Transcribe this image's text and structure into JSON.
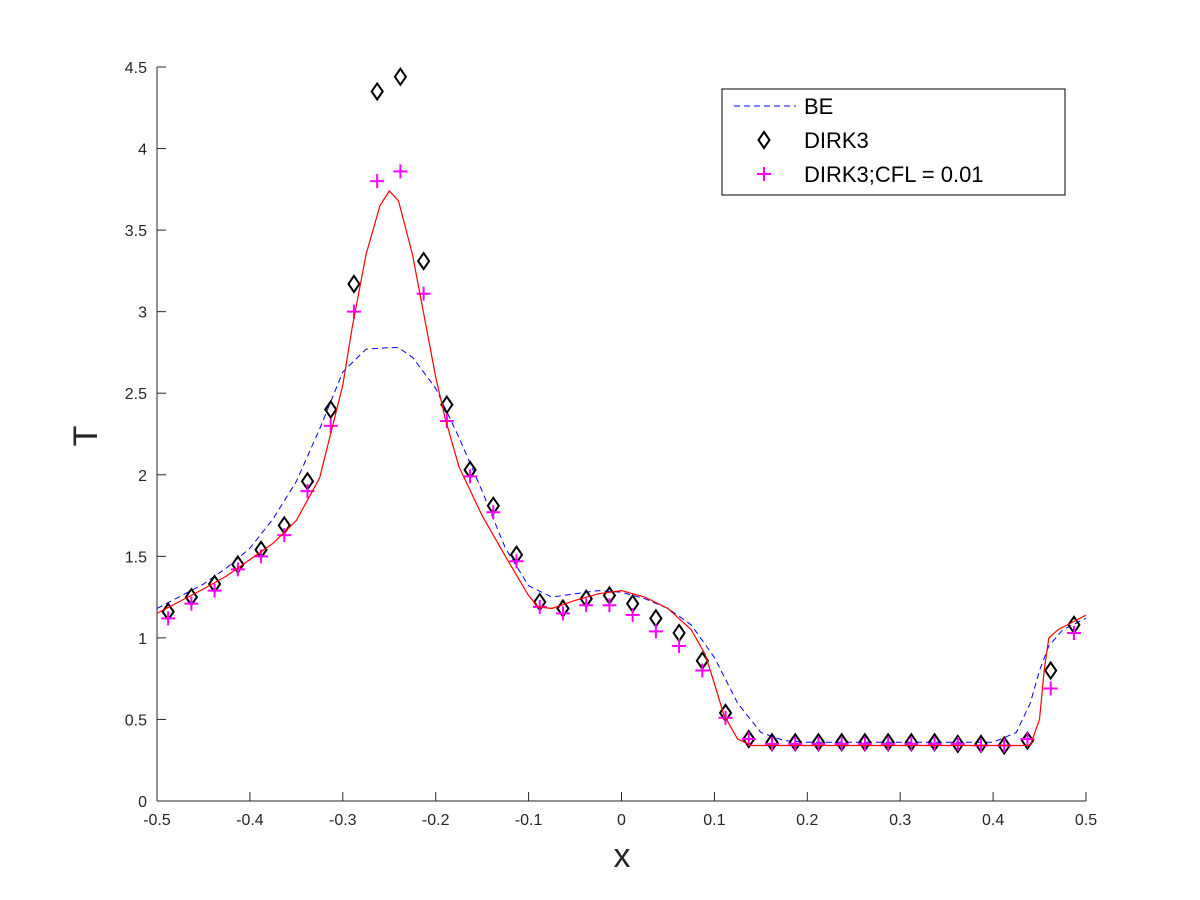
{
  "chart_data": {
    "type": "line",
    "xlabel": "x",
    "ylabel": "T",
    "xlim": [
      -0.5,
      0.5
    ],
    "ylim": [
      0,
      4.5
    ],
    "xticks": [
      "-0.5",
      "-0.4",
      "-0.3",
      "-0.2",
      "-0.1",
      "0",
      "0.1",
      "0.2",
      "0.3",
      "0.4",
      "0.5"
    ],
    "yticks": [
      "0",
      "0.5",
      "1",
      "1.5",
      "2",
      "2.5",
      "3",
      "3.5",
      "4",
      "4.5"
    ],
    "grid": false,
    "legend_position": "top-right",
    "series": [
      {
        "name": "BE",
        "style": "dashed-line",
        "color": "#0000ff",
        "x": [
          -0.5,
          -0.45,
          -0.425,
          -0.4,
          -0.375,
          -0.35,
          -0.325,
          -0.3,
          -0.275,
          -0.25,
          -0.24,
          -0.225,
          -0.2,
          -0.175,
          -0.15,
          -0.125,
          -0.1,
          -0.075,
          -0.05,
          -0.025,
          0.0,
          0.025,
          0.05,
          0.075,
          0.1,
          0.125,
          0.15,
          0.175,
          0.2,
          0.25,
          0.3,
          0.35,
          0.4,
          0.425,
          0.44,
          0.45,
          0.46,
          0.475,
          0.5
        ],
        "y": [
          1.18,
          1.33,
          1.43,
          1.55,
          1.73,
          1.96,
          2.28,
          2.63,
          2.77,
          2.78,
          2.78,
          2.72,
          2.53,
          2.23,
          1.9,
          1.55,
          1.32,
          1.25,
          1.27,
          1.29,
          1.28,
          1.24,
          1.18,
          1.08,
          0.88,
          0.6,
          0.42,
          0.37,
          0.36,
          0.36,
          0.36,
          0.36,
          0.36,
          0.42,
          0.6,
          0.8,
          0.95,
          1.05,
          1.12
        ]
      },
      {
        "name": "DIRK3",
        "style": "diamond-markers",
        "color": "#000000",
        "x": [
          -0.488,
          -0.463,
          -0.438,
          -0.413,
          -0.388,
          -0.363,
          -0.338,
          -0.313,
          -0.288,
          -0.263,
          -0.238,
          -0.213,
          -0.188,
          -0.163,
          -0.138,
          -0.113,
          -0.088,
          -0.063,
          -0.038,
          -0.013,
          0.012,
          0.037,
          0.062,
          0.087,
          0.112,
          0.137,
          0.162,
          0.187,
          0.212,
          0.237,
          0.262,
          0.287,
          0.312,
          0.337,
          0.362,
          0.387,
          0.412,
          0.437,
          0.462,
          0.487
        ],
        "y": [
          1.16,
          1.25,
          1.33,
          1.45,
          1.54,
          1.69,
          1.96,
          2.4,
          3.17,
          4.35,
          4.44,
          3.31,
          2.43,
          2.03,
          1.81,
          1.51,
          1.22,
          1.18,
          1.24,
          1.26,
          1.21,
          1.12,
          1.03,
          0.86,
          0.54,
          0.38,
          0.36,
          0.36,
          0.36,
          0.36,
          0.36,
          0.36,
          0.36,
          0.36,
          0.35,
          0.35,
          0.34,
          0.37,
          0.8,
          1.08
        ]
      },
      {
        "name": "DIRK3;CFL = 0.01",
        "style": "plus-markers",
        "color": "#ff00ff",
        "x": [
          -0.488,
          -0.463,
          -0.438,
          -0.413,
          -0.388,
          -0.363,
          -0.338,
          -0.313,
          -0.288,
          -0.263,
          -0.238,
          -0.213,
          -0.188,
          -0.163,
          -0.138,
          -0.113,
          -0.088,
          -0.063,
          -0.038,
          -0.013,
          0.012,
          0.037,
          0.062,
          0.087,
          0.112,
          0.137,
          0.162,
          0.187,
          0.212,
          0.237,
          0.262,
          0.287,
          0.312,
          0.337,
          0.362,
          0.387,
          0.412,
          0.437,
          0.462,
          0.487
        ],
        "y": [
          1.12,
          1.21,
          1.29,
          1.42,
          1.5,
          1.63,
          1.9,
          2.3,
          3.0,
          3.8,
          3.86,
          3.11,
          2.33,
          1.99,
          1.77,
          1.47,
          1.19,
          1.15,
          1.2,
          1.2,
          1.14,
          1.04,
          0.95,
          0.8,
          0.51,
          0.38,
          0.35,
          0.35,
          0.35,
          0.35,
          0.35,
          0.35,
          0.35,
          0.35,
          0.35,
          0.34,
          0.34,
          0.38,
          0.69,
          1.03
        ]
      },
      {
        "name": "",
        "style": "solid-line",
        "color": "#ff0000",
        "x": [
          -0.5,
          -0.45,
          -0.425,
          -0.4,
          -0.375,
          -0.35,
          -0.325,
          -0.3,
          -0.29,
          -0.275,
          -0.26,
          -0.25,
          -0.24,
          -0.225,
          -0.21,
          -0.2,
          -0.19,
          -0.175,
          -0.15,
          -0.125,
          -0.1,
          -0.09,
          -0.075,
          -0.05,
          -0.025,
          0.0,
          0.025,
          0.05,
          0.075,
          0.09,
          0.1,
          0.11,
          0.125,
          0.14,
          0.15,
          0.2,
          0.25,
          0.3,
          0.35,
          0.4,
          0.44,
          0.45,
          0.455,
          0.46,
          0.47,
          0.5
        ],
        "y": [
          1.15,
          1.3,
          1.38,
          1.48,
          1.58,
          1.72,
          1.98,
          2.55,
          2.9,
          3.35,
          3.65,
          3.74,
          3.68,
          3.35,
          2.9,
          2.6,
          2.35,
          2.05,
          1.75,
          1.5,
          1.26,
          1.19,
          1.18,
          1.23,
          1.27,
          1.29,
          1.25,
          1.18,
          1.05,
          0.9,
          0.72,
          0.53,
          0.38,
          0.34,
          0.34,
          0.34,
          0.34,
          0.34,
          0.34,
          0.34,
          0.34,
          0.5,
          0.8,
          1.0,
          1.05,
          1.14
        ]
      }
    ]
  }
}
